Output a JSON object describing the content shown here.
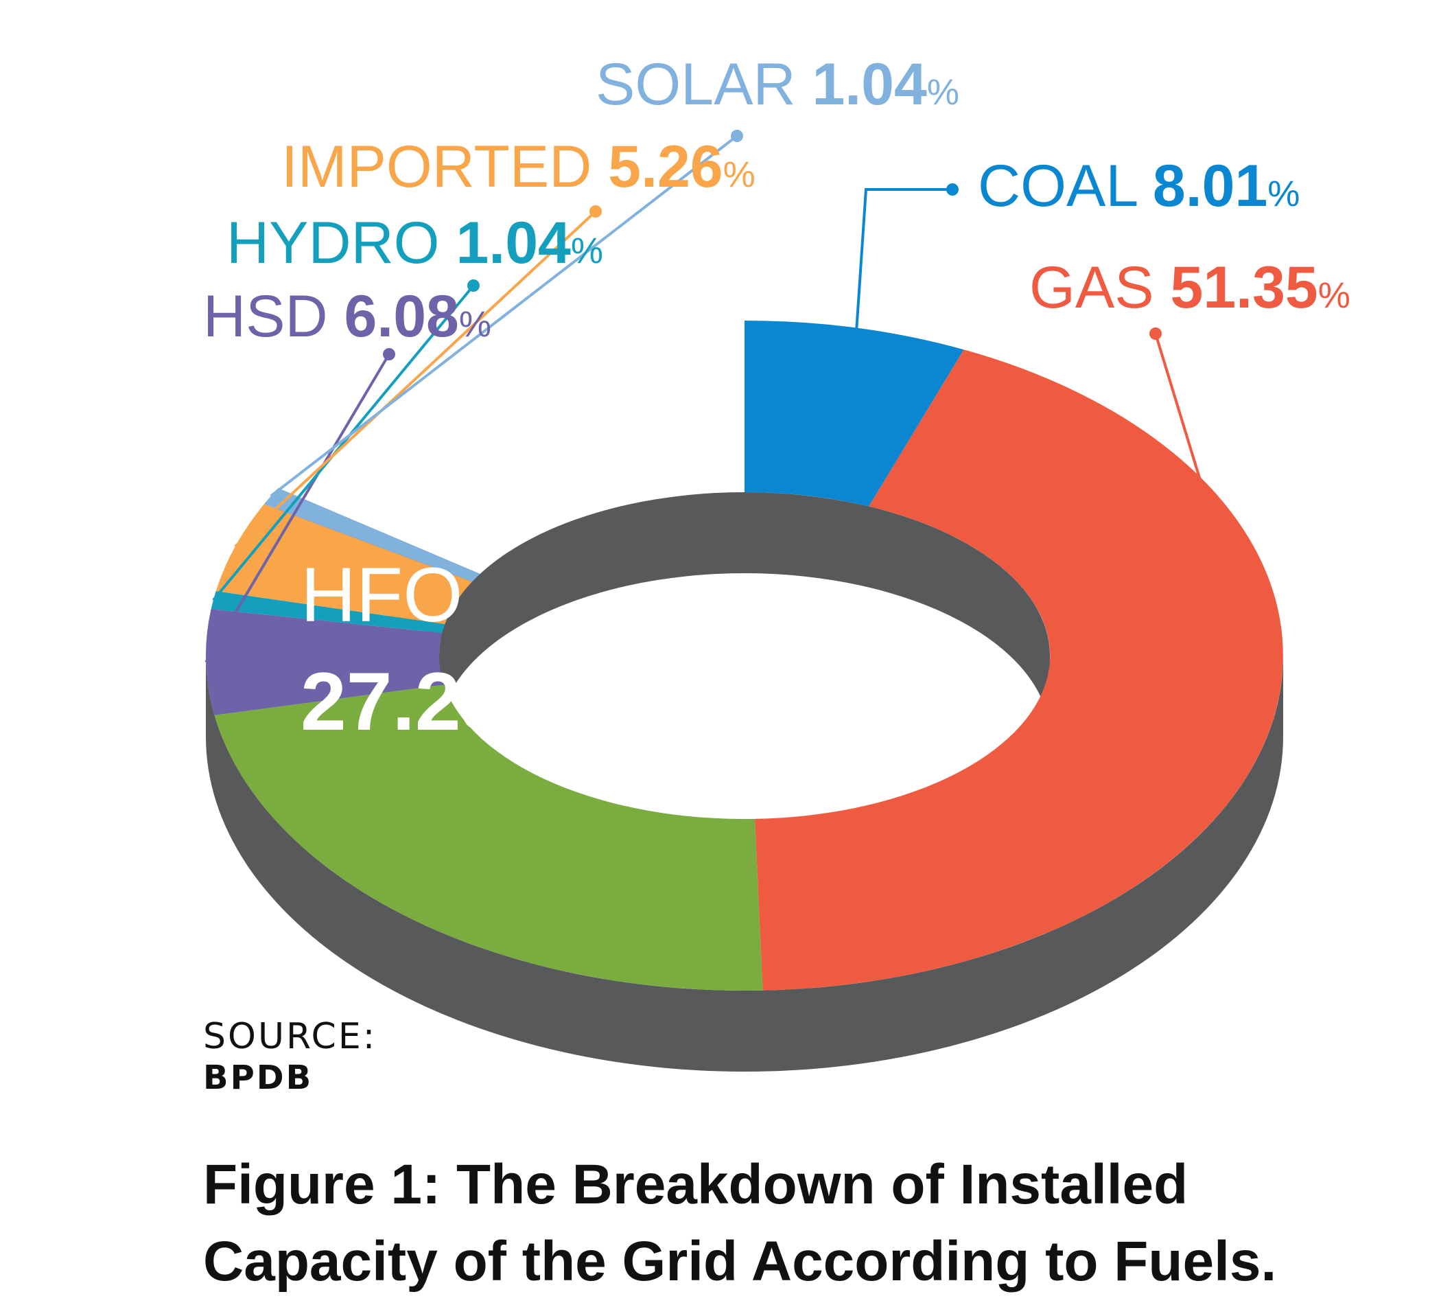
{
  "chart_data": {
    "type": "pie",
    "style": "3d-donut",
    "slices": [
      {
        "key": "coal",
        "label": "COAL",
        "value": 8.01,
        "value_text": "8.01",
        "color": "#0a87d0"
      },
      {
        "key": "gas",
        "label": "GAS",
        "value": 51.35,
        "value_text": "51.35",
        "color": "#ef5b40"
      },
      {
        "key": "hfo",
        "label": "HFO",
        "value": 27.23,
        "value_text": "27.23",
        "color": "#7bac40"
      },
      {
        "key": "hsd",
        "label": "HSD",
        "value": 6.08,
        "value_text": "6.08",
        "color": "#6e63a9"
      },
      {
        "key": "hydro",
        "label": "HYDRO",
        "value": 1.04,
        "value_text": "1.04",
        "color": "#149fbd"
      },
      {
        "key": "imported",
        "label": "IMPORTED",
        "value": 5.26,
        "value_text": "5.26",
        "color": "#f9a54a"
      },
      {
        "key": "solar",
        "label": "SOLAR",
        "value": 1.04,
        "value_text": "1.04",
        "color": "#81b1dd"
      }
    ],
    "unit": "%",
    "side_color": "#58595b"
  },
  "source": {
    "label": "SOURCE:",
    "value": "BPDB"
  },
  "caption": {
    "line1": "Figure 1: The Breakdown of Installed",
    "line2": "Capacity of the Grid According to Fuels."
  }
}
